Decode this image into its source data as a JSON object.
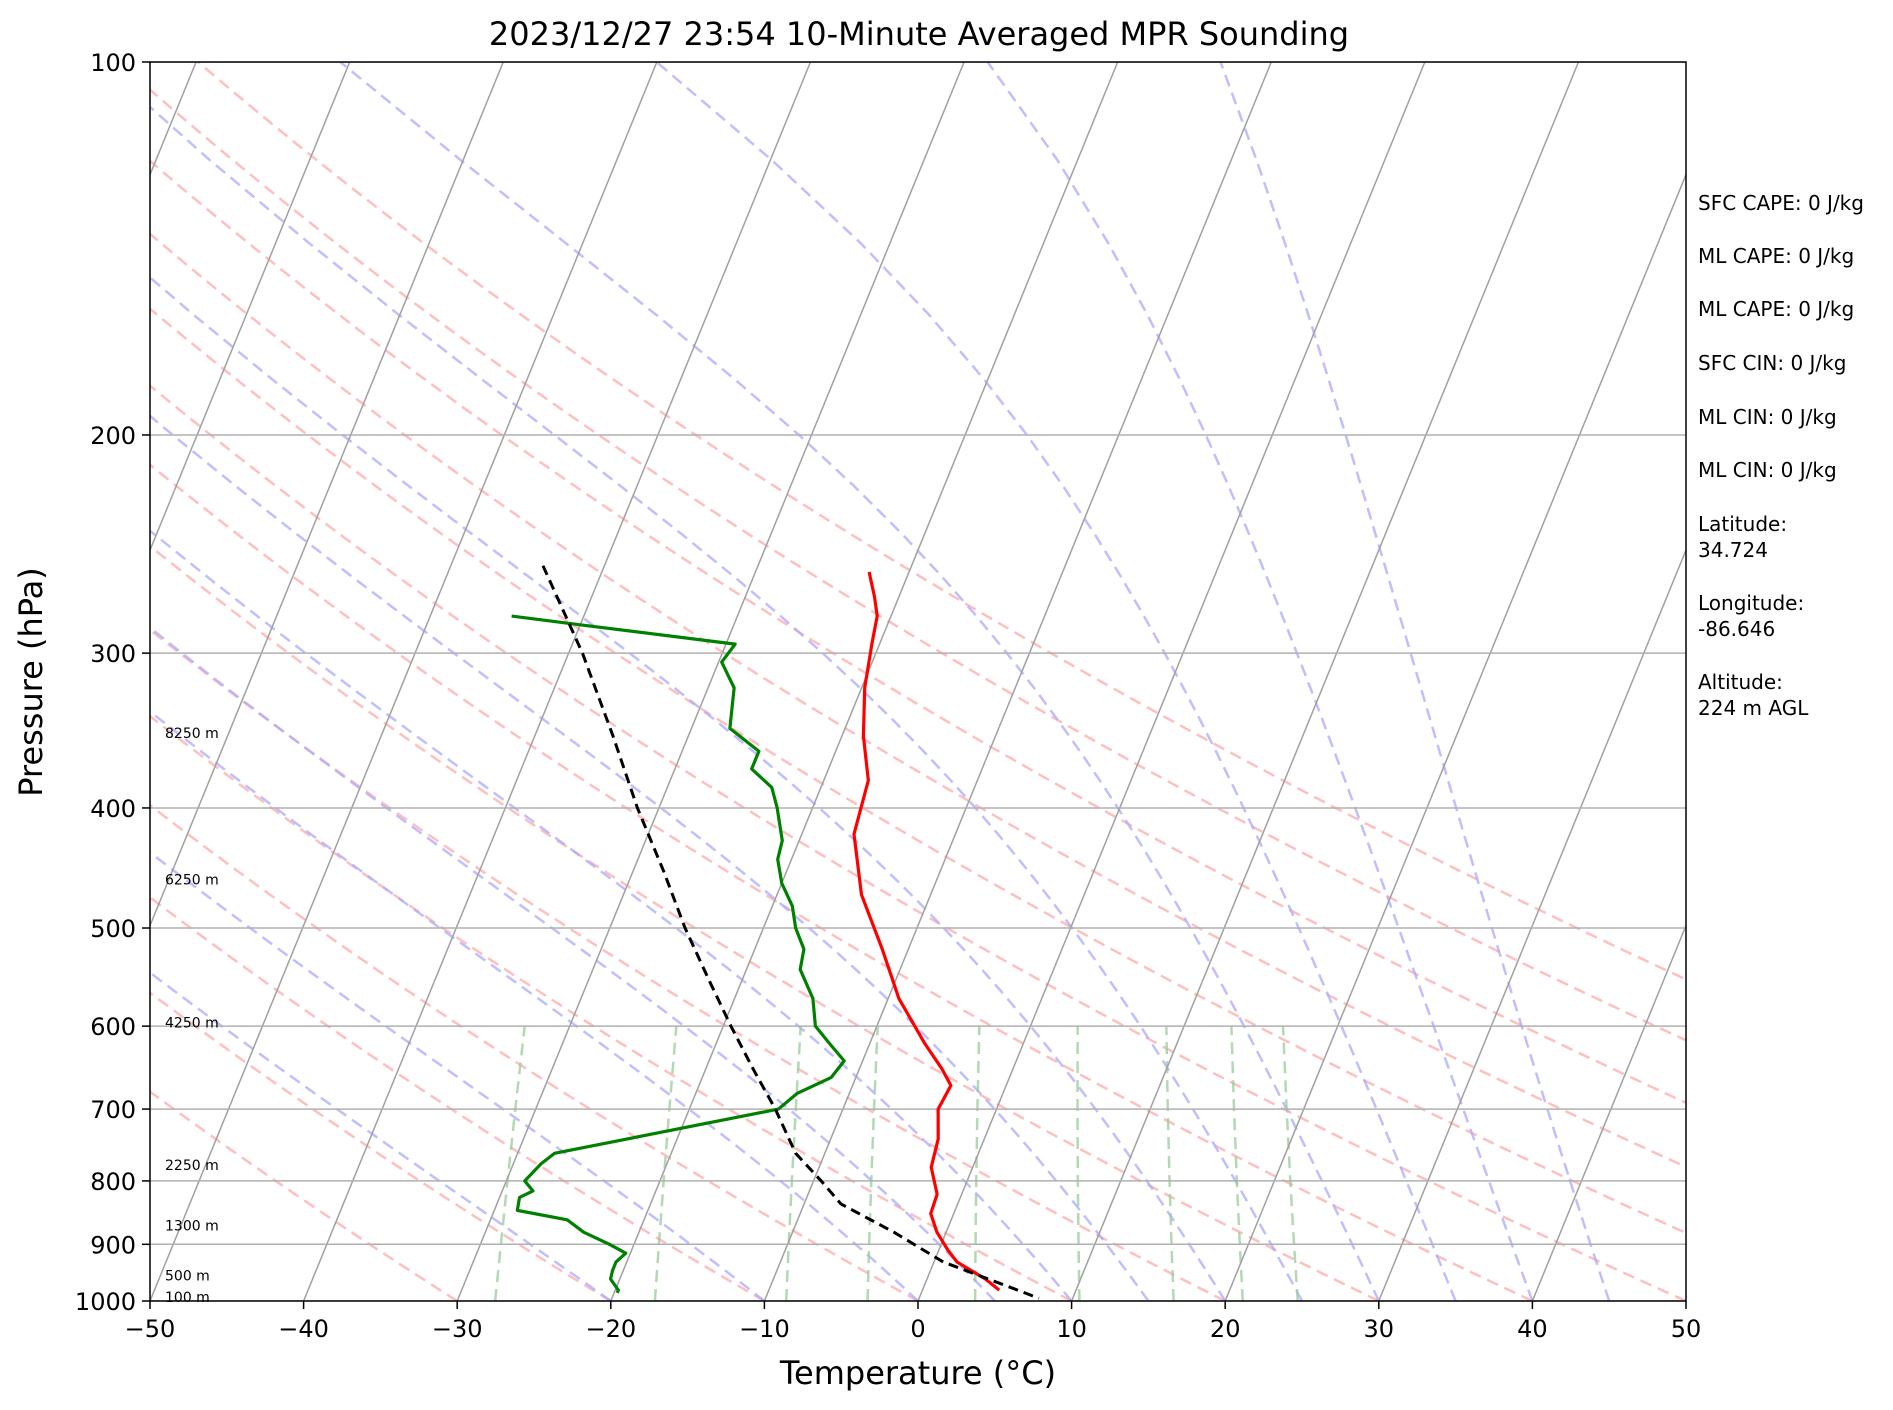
{
  "chart_data": {
    "type": "line",
    "chart_kind": "skew-t log-p",
    "title": "2023/12/27 23:54 10-Minute Averaged MPR Sounding",
    "xlabel": "Temperature (°C)",
    "ylabel": "Pressure (hPa)",
    "xlim": [
      -50,
      50
    ],
    "ylim": [
      1000,
      100
    ],
    "y_scale": "log",
    "x_ticks": [
      -50,
      -40,
      -30,
      -20,
      -10,
      0,
      10,
      20,
      30,
      40,
      50
    ],
    "x_tick_labels": [
      "−50",
      "−40",
      "−30",
      "−20",
      "−10",
      "0",
      "10",
      "20",
      "30",
      "40",
      "50"
    ],
    "y_ticks": [
      100,
      200,
      300,
      400,
      500,
      600,
      700,
      800,
      900,
      1000
    ],
    "y_tick_labels": [
      "100",
      "200",
      "300",
      "400",
      "500",
      "600",
      "700",
      "800",
      "900",
      "1000"
    ],
    "grid": true,
    "background_lines": {
      "isotherms": {
        "color": "#a0a0a0",
        "values": [
          -120,
          -110,
          -100,
          -90,
          -80,
          -70,
          -60,
          -50,
          -40,
          -30,
          -20,
          -10,
          0,
          10,
          20,
          30,
          40,
          50
        ]
      },
      "dry_adiabats": {
        "color": "#ffaaaa",
        "theta_c": [
          -30,
          -20,
          -10,
          0,
          10,
          20,
          30,
          40,
          50,
          60,
          70,
          80,
          90,
          100
        ]
      },
      "moist_adiabats": {
        "color": "#aaaaff",
        "start_t_1000_c": [
          -20,
          -10,
          0,
          5,
          10,
          15,
          20,
          25,
          30,
          35,
          40,
          45
        ]
      },
      "mixing_ratio_lines": {
        "color": "#99cc99",
        "g_per_kg": [
          0.4,
          1,
          2,
          3,
          5,
          8,
          12,
          16,
          20
        ]
      }
    },
    "series": [
      {
        "color": "#ff0000",
        "pressure": [
          258,
          270,
          280,
          295,
          320,
          350,
          380,
          420,
          470,
          520,
          570,
          620,
          650,
          670,
          700,
          740,
          780,
          820,
          850,
          880,
          910,
          930,
          960,
          980
        ],
        "values": [
          -22.6,
          -21.6,
          -20.9,
          -20.5,
          -19.8,
          -18.6,
          -17.1,
          -16.6,
          -14.5,
          -11.7,
          -9.3,
          -6.4,
          -4.6,
          -3.6,
          -3.8,
          -3.0,
          -2.7,
          -1.6,
          -1.5,
          -0.6,
          0.6,
          1.5,
          3.8,
          5.0
        ]
      },
      {
        "color": "#008000",
        "pressure": [
          280,
          285,
          295,
          305,
          320,
          345,
          360,
          372,
          385,
          400,
          425,
          440,
          460,
          480,
          500,
          520,
          540,
          570,
          600,
          620,
          640,
          660,
          680,
          700,
          760,
          775,
          800,
          815,
          825,
          845,
          860,
          880,
          900,
          915,
          930,
          945,
          960,
          980,
          985
        ],
        "values": [
          -44.7,
          -39.6,
          -29.4,
          -29.8,
          -28.3,
          -27.5,
          -25.0,
          -25.0,
          -23.2,
          -22.3,
          -21.1,
          -20.9,
          -20.0,
          -18.7,
          -17.9,
          -16.8,
          -16.5,
          -14.9,
          -14.0,
          -12.6,
          -11.2,
          -11.6,
          -13.4,
          -14.2,
          -27.6,
          -28.2,
          -28.8,
          -28.0,
          -28.7,
          -28.5,
          -25.0,
          -23.6,
          -21.6,
          -20.3,
          -20.7,
          -20.7,
          -20.6,
          -19.8,
          -19.8
        ]
      },
      {
        "color": "#000000",
        "style": "dashed",
        "pressure": [
          255,
          300,
          350,
          400,
          450,
          500,
          550,
          600,
          650,
          700,
          760,
          800,
          835,
          880,
          930,
          980,
          995
        ],
        "values": [
          -44.0,
          -39.1,
          -34.9,
          -31.4,
          -28.0,
          -25.1,
          -22.2,
          -19.5,
          -16.9,
          -14.4,
          -11.9,
          -9.5,
          -7.6,
          -3.4,
          0.6,
          6.2,
          7.8
        ]
      }
    ],
    "height_labels": [
      {
        "text": "8250 m",
        "pressure": 348
      },
      {
        "text": "6250 m",
        "pressure": 457
      },
      {
        "text": "4250 m",
        "pressure": 596
      },
      {
        "text": "2250 m",
        "pressure": 777
      },
      {
        "text": "1300 m",
        "pressure": 869
      },
      {
        "text": "500 m",
        "pressure": 954
      },
      {
        "text": "100 m",
        "pressure": 993
      }
    ],
    "stats": [
      "SFC CAPE: 0 J/kg",
      "ML CAPE: 0 J/kg",
      "ML CAPE: 0 J/kg",
      "SFC CIN: 0 J/kg",
      "ML CIN: 0 J/kg",
      "ML CIN: 0 J/kg",
      "Latitude:",
      "34.724",
      "Longitude:",
      "-86.646",
      "Altitude:",
      "224 m AGL"
    ]
  }
}
